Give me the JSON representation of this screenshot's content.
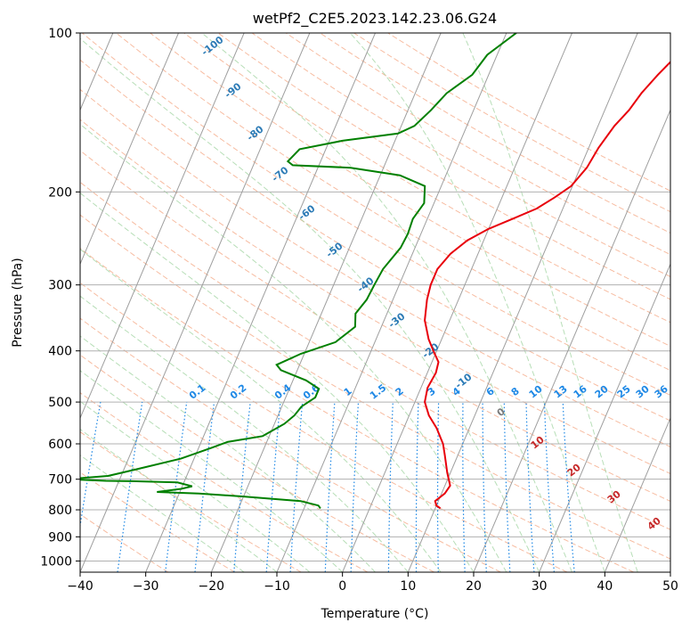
{
  "chart_data": {
    "type": "line",
    "subtype": "skew-t log-p diagram",
    "title": "wetPf2_C2E5.2023.142.23.06.G24",
    "xlabel": "Temperature (°C)",
    "ylabel": "Pressure (hPa)",
    "xlim": [
      -40,
      50
    ],
    "ylim": [
      1050,
      100
    ],
    "x_ticks": [
      -40,
      -30,
      -20,
      -10,
      0,
      10,
      20,
      30,
      40,
      50
    ],
    "x_tick_labels": [
      "−40",
      "−30",
      "−20",
      "−10",
      "0",
      "10",
      "20",
      "30",
      "40",
      "50"
    ],
    "y_ticks": [
      100,
      200,
      300,
      400,
      500,
      600,
      700,
      800,
      900,
      1000
    ],
    "y_tick_labels": [
      "100",
      "200",
      "300",
      "400",
      "500",
      "600",
      "700",
      "800",
      "900",
      "1000"
    ],
    "grid": true,
    "colors": {
      "temperature": "#e8000b",
      "dewpoint": "#008000",
      "isotherm": "#9e9e9e",
      "dry_adiabat": "#f4a582",
      "moist_adiabat": "#9fd39f",
      "mixing_ratio": "#1e88e5",
      "isotherm_label": "#2c7bb6",
      "heights_label": "#c62828",
      "zero_label": "#7a7a7a"
    },
    "series": [
      {
        "name": "Temperature",
        "points": [
          [
            10.8,
            795
          ],
          [
            10.0,
            785
          ],
          [
            9.5,
            770
          ],
          [
            10.5,
            745
          ],
          [
            10.8,
            720
          ],
          [
            9.5,
            680
          ],
          [
            8.0,
            630
          ],
          [
            7.0,
            600
          ],
          [
            5.0,
            560
          ],
          [
            3.0,
            530
          ],
          [
            1.5,
            500
          ],
          [
            1.0,
            470
          ],
          [
            1.3,
            440
          ],
          [
            1.0,
            420
          ],
          [
            -0.5,
            400
          ],
          [
            -2.0,
            380
          ],
          [
            -3.8,
            350
          ],
          [
            -4.8,
            320
          ],
          [
            -5.2,
            300
          ],
          [
            -5.2,
            280
          ],
          [
            -4.2,
            262
          ],
          [
            -2.5,
            247
          ],
          [
            0.0,
            235
          ],
          [
            3.0,
            225
          ],
          [
            6.0,
            215
          ],
          [
            8.0,
            205
          ],
          [
            9.8,
            195
          ],
          [
            11.0,
            180
          ],
          [
            11.5,
            165
          ],
          [
            12.5,
            150
          ],
          [
            13.7,
            140
          ],
          [
            14.5,
            130
          ],
          [
            15.8,
            120
          ],
          [
            17.5,
            110
          ],
          [
            19.0,
            100
          ]
        ]
      },
      {
        "name": "Dewpoint",
        "points": [
          [
            -7.5,
            795
          ],
          [
            -8.0,
            785
          ],
          [
            -11.0,
            770
          ],
          [
            -20.0,
            755
          ],
          [
            -27.0,
            745
          ],
          [
            -33.5,
            740
          ],
          [
            -30.0,
            730
          ],
          [
            -28.5,
            722
          ],
          [
            -31.0,
            710
          ],
          [
            -38.0,
            706
          ],
          [
            -42.0,
            705
          ],
          [
            -48.0,
            700
          ],
          [
            -42.0,
            690
          ],
          [
            -38.0,
            670
          ],
          [
            -32.0,
            640
          ],
          [
            -28.0,
            610
          ],
          [
            -26.0,
            595
          ],
          [
            -21.0,
            580
          ],
          [
            -18.5,
            550
          ],
          [
            -17.5,
            530
          ],
          [
            -17.0,
            510
          ],
          [
            -15.5,
            490
          ],
          [
            -15.5,
            472
          ],
          [
            -18.0,
            455
          ],
          [
            -22.5,
            435
          ],
          [
            -23.5,
            425
          ],
          [
            -20.5,
            405
          ],
          [
            -16.0,
            385
          ],
          [
            -14.0,
            360
          ],
          [
            -14.8,
            340
          ],
          [
            -14.0,
            320
          ],
          [
            -13.8,
            300
          ],
          [
            -13.5,
            280
          ],
          [
            -12.2,
            255
          ],
          [
            -12.0,
            240
          ],
          [
            -12.2,
            225
          ],
          [
            -11.5,
            210
          ],
          [
            -12.5,
            195
          ],
          [
            -17.0,
            186
          ],
          [
            -25.0,
            180
          ],
          [
            -34.0,
            178
          ],
          [
            -35.0,
            175
          ],
          [
            -34.0,
            166
          ],
          [
            -28.0,
            160
          ],
          [
            -20.0,
            155
          ],
          [
            -18.0,
            150
          ],
          [
            -16.5,
            140
          ],
          [
            -15.2,
            130
          ],
          [
            -12.5,
            120
          ],
          [
            -11.5,
            110
          ],
          [
            -8.5,
            100
          ]
        ]
      }
    ],
    "isotherm_labels": [
      "-100",
      "-90",
      "-80",
      "-70",
      "-60",
      "-50",
      "-40",
      "-30",
      "-20",
      "-10"
    ],
    "mixing_ratio_labels": [
      "0.1",
      "0.2",
      "0.4",
      "0.6",
      "1",
      "1.5",
      "2",
      "3",
      "4",
      "6",
      "8",
      "10",
      "13",
      "16",
      "20",
      "25",
      "30",
      "36"
    ],
    "height_labels": [
      "0",
      "10",
      "20",
      "30",
      "40"
    ]
  }
}
